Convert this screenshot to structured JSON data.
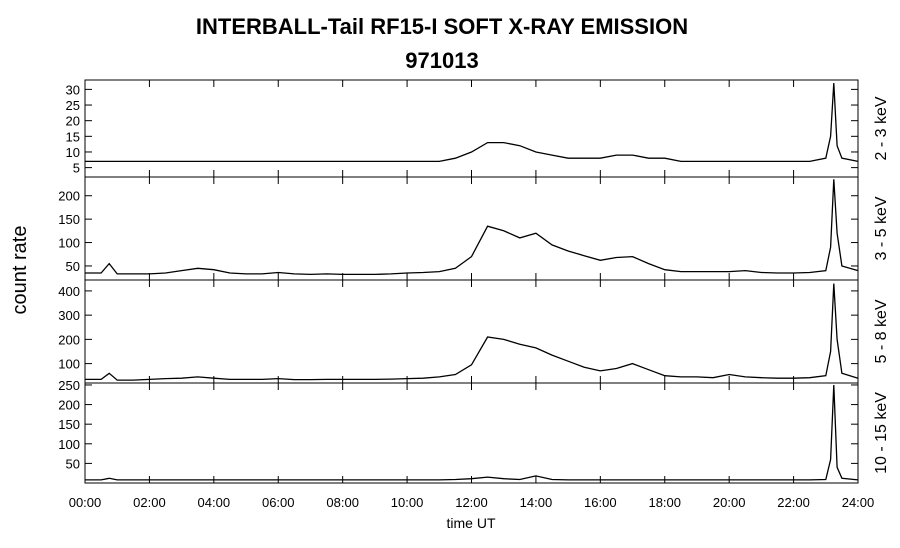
{
  "title": "INTERBALL-Tail RF15-I SOFT X-RAY EMISSION",
  "subtitle": "971013",
  "ylabel": "count rate",
  "xlabel": "time UT",
  "chart_data": [
    {
      "type": "line",
      "label": "2 - 3 keV",
      "color": "#000000",
      "x": [
        0,
        0.5,
        0.75,
        1,
        1.5,
        2,
        2.5,
        3,
        3.5,
        4,
        4.5,
        5,
        5.5,
        6,
        6.5,
        7,
        7.5,
        8,
        8.5,
        9,
        9.5,
        10,
        10.5,
        11,
        11.5,
        12,
        12.5,
        13,
        13.5,
        14,
        14.5,
        15,
        15.5,
        16,
        16.5,
        17,
        17.5,
        18,
        18.5,
        19,
        19.5,
        20,
        20.5,
        21,
        21.5,
        22,
        22.5,
        23,
        23.15,
        23.25,
        23.35,
        23.5,
        24
      ],
      "values": [
        7,
        7,
        7,
        7,
        7,
        7,
        7,
        7,
        7,
        7,
        7,
        7,
        7,
        7,
        7,
        7,
        7,
        7,
        7,
        7,
        7,
        7,
        7,
        7,
        8,
        10,
        13,
        13,
        12,
        10,
        9,
        8,
        8,
        8,
        9,
        9,
        8,
        8,
        7,
        7,
        7,
        7,
        7,
        7,
        7,
        7,
        7,
        8,
        15,
        32,
        12,
        8,
        7
      ],
      "xlim": [
        0,
        24
      ],
      "ylim": [
        2,
        33
      ],
      "yticks": [
        5,
        10,
        15,
        20,
        25,
        30
      ]
    },
    {
      "type": "line",
      "label": "3 - 5 keV",
      "color": "#000000",
      "x": [
        0,
        0.5,
        0.75,
        1,
        1.5,
        2,
        2.5,
        3,
        3.5,
        4,
        4.5,
        5,
        5.5,
        6,
        6.5,
        7,
        7.5,
        8,
        8.5,
        9,
        9.5,
        10,
        10.5,
        11,
        11.5,
        12,
        12.5,
        13,
        13.5,
        14,
        14.5,
        15,
        15.5,
        16,
        16.5,
        17,
        17.5,
        18,
        18.5,
        19,
        19.5,
        20,
        20.5,
        21,
        21.5,
        22,
        22.5,
        23,
        23.15,
        23.25,
        23.35,
        23.5,
        24
      ],
      "values": [
        35,
        35,
        55,
        33,
        33,
        33,
        35,
        40,
        45,
        42,
        35,
        33,
        33,
        36,
        33,
        32,
        33,
        32,
        32,
        32,
        33,
        35,
        36,
        38,
        45,
        70,
        135,
        125,
        110,
        120,
        95,
        82,
        72,
        62,
        68,
        70,
        55,
        42,
        38,
        38,
        38,
        38,
        40,
        36,
        35,
        35,
        36,
        40,
        90,
        235,
        120,
        50,
        40
      ],
      "xlim": [
        0,
        24
      ],
      "ylim": [
        20,
        240
      ],
      "yticks": [
        50,
        100,
        150,
        200
      ]
    },
    {
      "type": "line",
      "label": "5 - 8 keV",
      "color": "#000000",
      "x": [
        0,
        0.5,
        0.75,
        1,
        1.5,
        2,
        2.5,
        3,
        3.5,
        4,
        4.5,
        5,
        5.5,
        6,
        6.5,
        7,
        7.5,
        8,
        8.5,
        9,
        9.5,
        10,
        10.5,
        11,
        11.5,
        12,
        12.5,
        13,
        13.5,
        14,
        14.5,
        15,
        15.5,
        16,
        16.5,
        17,
        17.5,
        18,
        18.5,
        19,
        19.5,
        20,
        20.5,
        21,
        21.5,
        22,
        22.5,
        23,
        23.15,
        23.25,
        23.35,
        23.5,
        24
      ],
      "values": [
        35,
        35,
        60,
        32,
        32,
        35,
        38,
        40,
        45,
        40,
        35,
        35,
        35,
        38,
        34,
        34,
        35,
        35,
        35,
        35,
        36,
        38,
        40,
        45,
        55,
        95,
        210,
        200,
        180,
        165,
        135,
        110,
        85,
        70,
        80,
        100,
        75,
        50,
        45,
        45,
        42,
        55,
        45,
        42,
        40,
        40,
        42,
        50,
        150,
        430,
        200,
        60,
        40
      ],
      "xlim": [
        0,
        24
      ],
      "ylim": [
        20,
        445
      ],
      "yticks": [
        100,
        200,
        300,
        400
      ]
    },
    {
      "type": "line",
      "label": "10 - 15 keV",
      "color": "#000000",
      "x": [
        0,
        0.5,
        0.75,
        1,
        1.5,
        2,
        2.5,
        3,
        3.5,
        4,
        4.5,
        5,
        5.5,
        6,
        6.5,
        7,
        7.5,
        8,
        8.5,
        9,
        9.5,
        10,
        10.5,
        11,
        11.5,
        12,
        12.5,
        13,
        13.5,
        14,
        14.5,
        15,
        15.5,
        16,
        16.5,
        17,
        17.5,
        18,
        18.5,
        19,
        19.5,
        20,
        20.5,
        21,
        21.5,
        22,
        22.5,
        23,
        23.15,
        23.25,
        23.35,
        23.5,
        24
      ],
      "values": [
        8,
        8,
        12,
        8,
        8,
        8,
        8,
        8,
        8,
        8,
        8,
        8,
        8,
        8,
        8,
        8,
        8,
        8,
        8,
        8,
        8,
        8,
        8,
        8,
        9,
        11,
        15,
        11,
        9,
        18,
        9,
        8,
        8,
        8,
        8,
        8,
        8,
        8,
        8,
        8,
        8,
        8,
        8,
        8,
        8,
        8,
        8,
        9,
        60,
        250,
        40,
        12,
        8
      ],
      "xlim": [
        0,
        24
      ],
      "ylim": [
        0,
        255
      ],
      "yticks": [
        50,
        100,
        150,
        200,
        250
      ],
      "xticks": [
        {
          "value": 0,
          "label": "00:00"
        },
        {
          "value": 2,
          "label": "02:00"
        },
        {
          "value": 4,
          "label": "04:00"
        },
        {
          "value": 6,
          "label": "06:00"
        },
        {
          "value": 8,
          "label": "08:00"
        },
        {
          "value": 10,
          "label": "10:00"
        },
        {
          "value": 12,
          "label": "12:00"
        },
        {
          "value": 14,
          "label": "14:00"
        },
        {
          "value": 16,
          "label": "16:00"
        },
        {
          "value": 18,
          "label": "18:00"
        },
        {
          "value": 20,
          "label": "20:00"
        },
        {
          "value": 22,
          "label": "22:00"
        },
        {
          "value": 24,
          "label": "24:00"
        }
      ]
    }
  ]
}
